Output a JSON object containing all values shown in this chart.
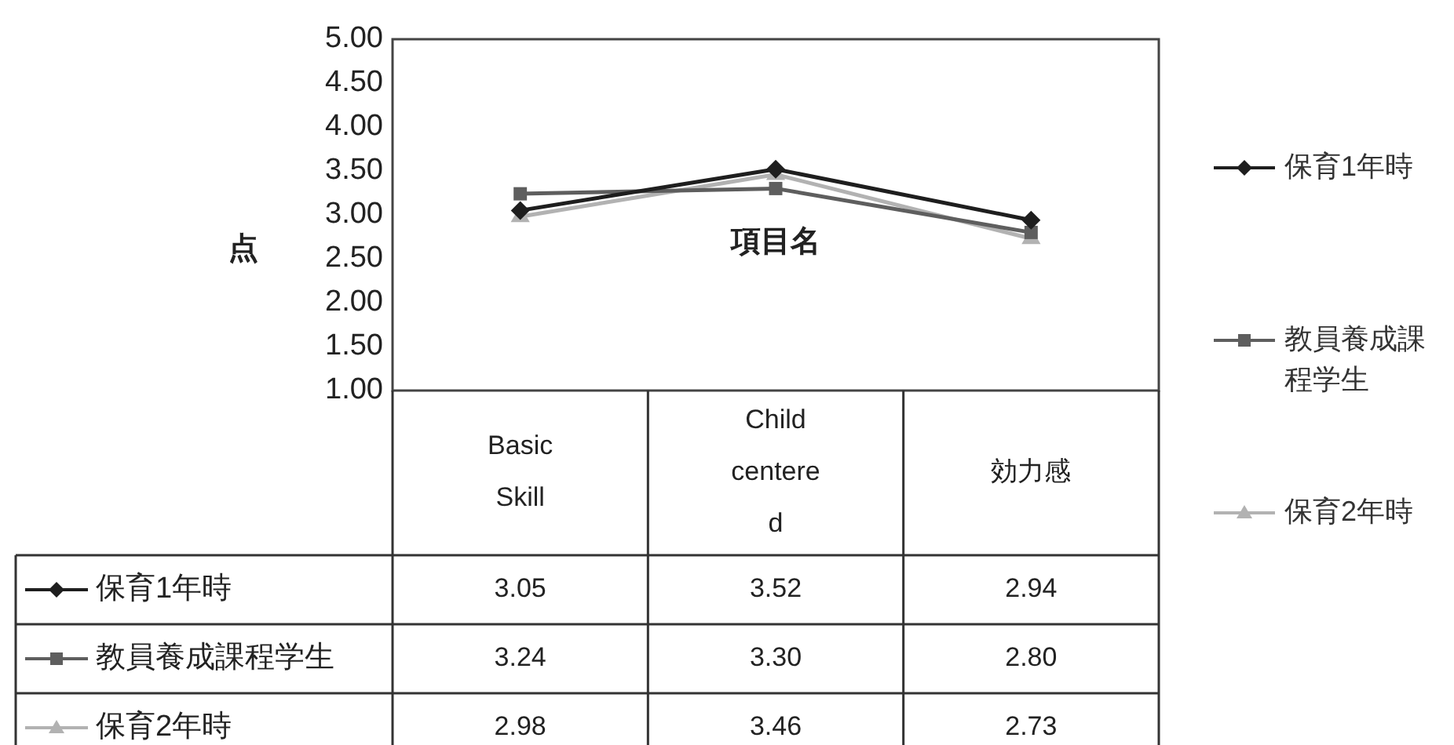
{
  "chart_data": {
    "type": "line",
    "ylabel": "点",
    "xlabel": "項目名",
    "categories": [
      "Basic Skill",
      "Child centered",
      "効力感"
    ],
    "series": [
      {
        "name": "保育1年時",
        "color": "#1e1e1e",
        "marker": "diamond",
        "values": [
          3.05,
          3.52,
          2.94
        ],
        "value_labels": [
          "3.05",
          "3.52",
          "2.94"
        ]
      },
      {
        "name": "教員養成課程学生",
        "color": "#5e5e5e",
        "marker": "square",
        "values": [
          3.24,
          3.3,
          2.8
        ],
        "value_labels": [
          "3.24",
          "3.30",
          "2.80"
        ]
      },
      {
        "name": "保育2年時",
        "color": "#b2b2b2",
        "marker": "triangle",
        "values": [
          2.98,
          3.46,
          2.73
        ],
        "value_labels": [
          "2.98",
          "3.46",
          "2.73"
        ]
      }
    ],
    "ylim": [
      1,
      5
    ],
    "yticks": [
      {
        "value": 1,
        "label": "1.00"
      },
      {
        "value": 1.5,
        "label": "1.50"
      },
      {
        "value": 2,
        "label": "2.00"
      },
      {
        "value": 2.5,
        "label": "2.50"
      },
      {
        "value": 3,
        "label": "3.00"
      },
      {
        "value": 3.5,
        "label": "3.50"
      },
      {
        "value": 4,
        "label": "4.00"
      },
      {
        "value": 4.5,
        "label": "4.50"
      },
      {
        "value": 5,
        "label": "5.00"
      }
    ],
    "legend": "right",
    "line_style": "solid"
  }
}
